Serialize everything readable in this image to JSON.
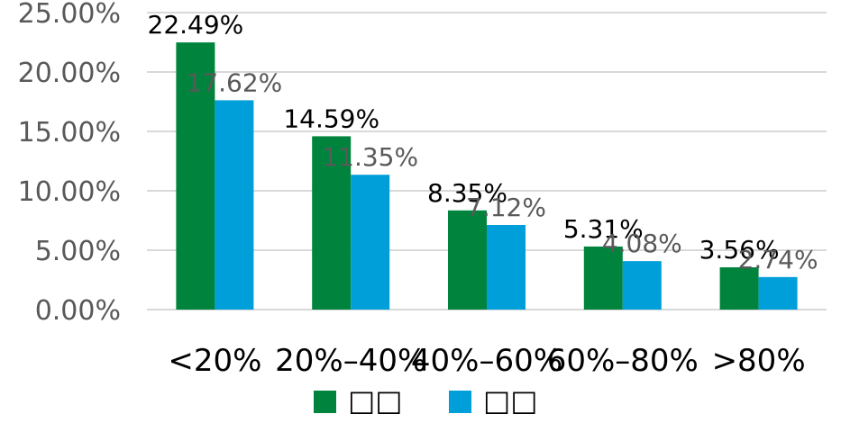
{
  "chart_data": {
    "type": "bar",
    "categories": [
      "<20%",
      "20%–40%",
      "40%–60%",
      "60%–80%",
      ">80%"
    ],
    "series": [
      {
        "name": "□□",
        "color": "#00843D",
        "label_color": "#000000",
        "values": [
          22.49,
          14.59,
          8.35,
          5.31,
          3.56
        ]
      },
      {
        "name": "□□",
        "color": "#009FDA",
        "label_color": "#595959",
        "values": [
          17.62,
          11.35,
          7.12,
          4.08,
          2.74
        ]
      }
    ],
    "data_labels": [
      [
        "22.49%",
        "14.59%",
        "8.35%",
        "5.31%",
        "3.56%"
      ],
      [
        "17.62%",
        "11.35%",
        "7.12%",
        "4.08%",
        "2.74%"
      ]
    ],
    "ylim": [
      0,
      25
    ],
    "yticks": [
      0,
      5,
      10,
      15,
      20,
      25
    ],
    "ytick_labels": [
      "0.00%",
      "5.00%",
      "10.00%",
      "15.00%",
      "20.00%",
      "25.00%"
    ],
    "grid": true,
    "legend": "bottom-center",
    "gridline_color": "#D9D9D9"
  }
}
